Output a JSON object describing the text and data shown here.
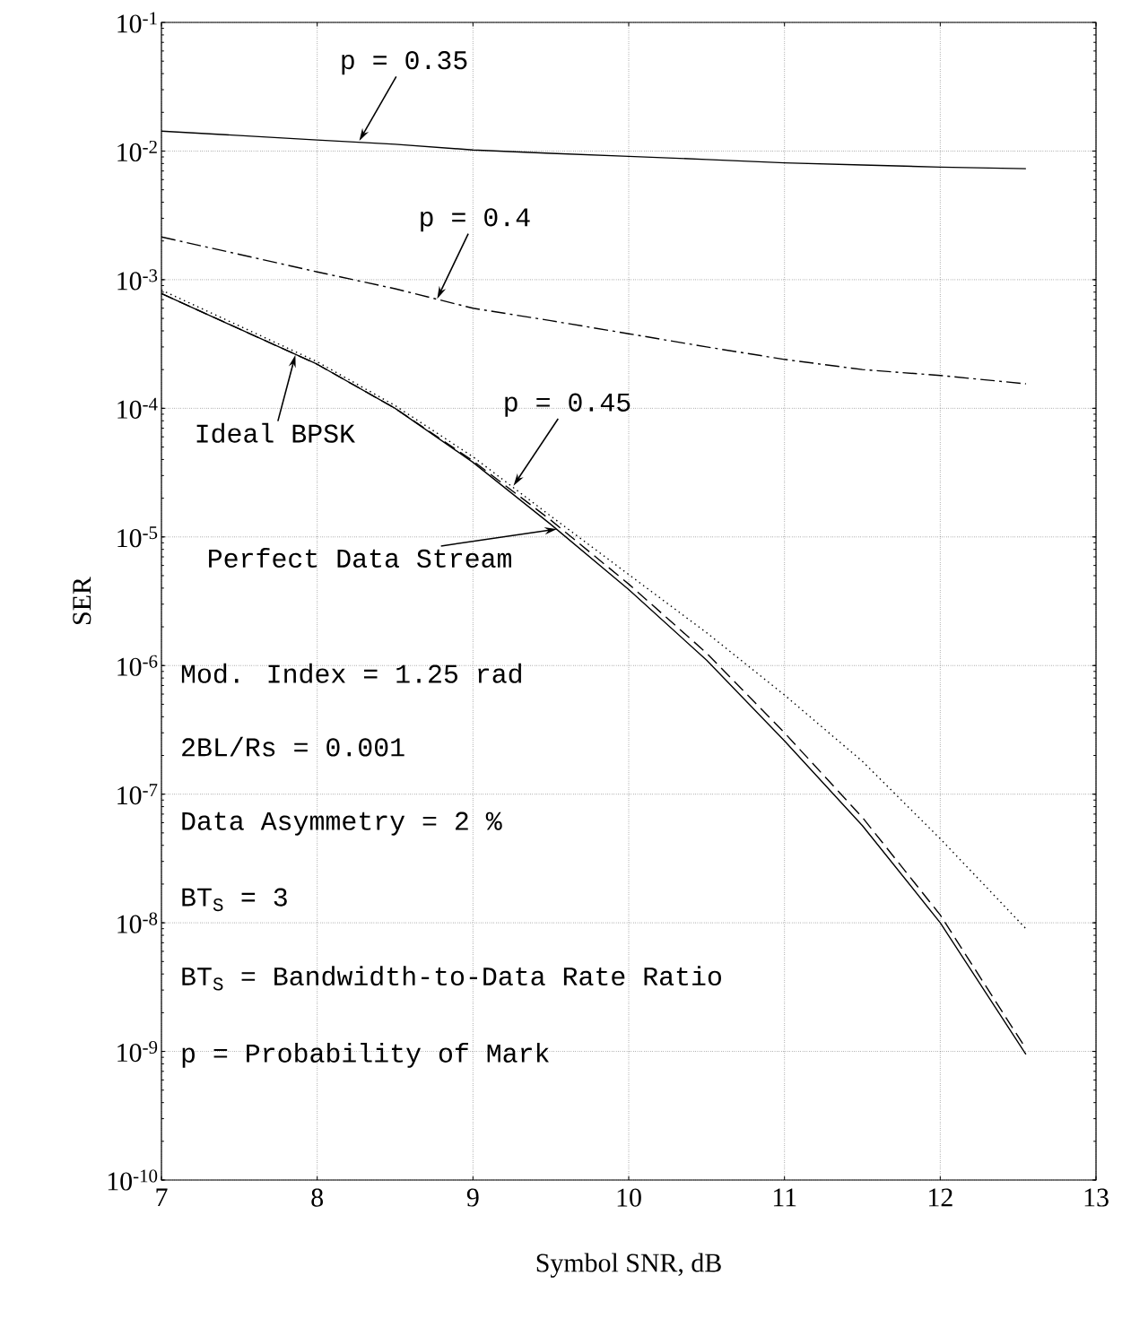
{
  "chart_data": {
    "type": "line",
    "xlabel": "Symbol SNR, dB",
    "ylabel": "SER",
    "log": "y",
    "grid": true,
    "marker": "none",
    "xlim": [
      7,
      13
    ],
    "xticks": [
      7,
      8,
      9,
      10,
      11,
      12,
      13
    ],
    "ylim": [
      1e-10,
      0.1
    ],
    "yticks": [
      {
        "value": 1e-10,
        "label": "10$^{-10}$"
      },
      {
        "value": 1e-09,
        "label": "10$^{-9}$"
      },
      {
        "value": 1e-08,
        "label": "10$^{-8}$"
      },
      {
        "value": 1e-07,
        "label": "10$^{-7}$"
      },
      {
        "value": 1e-06,
        "label": "10$^{-6}$"
      },
      {
        "value": 1e-05,
        "label": "10$^{-5}$"
      },
      {
        "value": 0.0001,
        "label": "10$^{-4}$"
      },
      {
        "value": 0.001,
        "label": "10$^{-3}$"
      },
      {
        "value": 0.01,
        "label": "10$^{-2}$"
      },
      {
        "value": 0.1,
        "label": "10$^{-1}$"
      }
    ],
    "x": [
      7,
      8,
      8.5,
      9,
      9.5,
      10,
      10.5,
      11,
      11.5,
      12,
      12.55
    ],
    "series": [
      {
        "color": "#000000",
        "line_style": "solid",
        "values": [
          0.0143,
          0.0122,
          0.0113,
          0.0102,
          0.0096,
          0.0091,
          0.0086,
          0.0081,
          0.0078,
          0.0075,
          0.0073
        ]
      },
      {
        "color": "#000000",
        "line_style": "dashdot",
        "values": [
          0.00215,
          0.00115,
          0.00085,
          0.0006,
          0.00048,
          0.00038,
          0.0003,
          0.00024,
          0.0002,
          0.00018,
          0.000155
        ]
      },
      {
        "color": "#000000",
        "line_style": "solid",
        "values": [
          0.00078,
          0.00022,
          0.0001,
          3.8e-05,
          1.25e-05,
          3.9e-06,
          1.1e-06,
          2.6e-07,
          5.7e-08,
          1e-08,
          9.5e-10
        ]
      },
      {
        "color": "#000000",
        "line_style": "dashed",
        "values": [
          0.00078,
          0.00022,
          0.0001,
          3.9e-05,
          1.35e-05,
          4.3e-06,
          1.25e-06,
          3e-07,
          6.6e-08,
          1.15e-08,
          1.05e-09
        ]
      },
      {
        "color": "#000000",
        "line_style": "dotted",
        "values": [
          0.00083,
          0.00023,
          0.000105,
          4.2e-05,
          1.45e-05,
          5.1e-06,
          1.8e-06,
          5.9e-07,
          1.8e-07,
          4.5e-08,
          9e-09
        ]
      }
    ],
    "annotations": [
      {
        "text": "p = 0.35",
        "x": 8.27,
        "y": 0.012
      },
      {
        "text": "p = 0.4",
        "x": 8.77,
        "y": 0.00071
      },
      {
        "text": "Ideal BPSK",
        "x": 7.86,
        "y": 0.00026
      },
      {
        "text": "p = 0.45",
        "x": 9.26,
        "y": 2.5e-05
      },
      {
        "text": "Perfect Data Stream",
        "x": 9.54,
        "y": 1.15e-05
      },
      "Mod. Index = 1.25 rad",
      "2BL/Rs = 0.001",
      "Data Asymmetry = 2 %",
      "BT$_{S}$ = 3",
      "BT$_{S}$ = Bandwidth-to-Data Rate Ratio",
      "p = Probability of Mark"
    ]
  }
}
